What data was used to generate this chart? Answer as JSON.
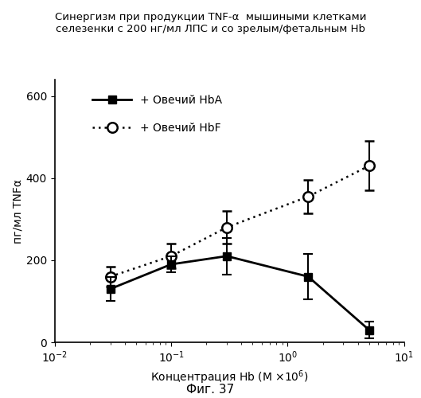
{
  "title_line1": "Синергизм при продукции TNF-α  мышиными клетками",
  "title_line2": "селезенки с 200 нг/мл ЛПС и со зрелым/фетальным Hb",
  "xlabel": "Концентрация Hb (М ×$10^{6}$)",
  "ylabel": "пг/мл TNFα",
  "fig_label": "Фиг. 37",
  "hbA_x": [
    0.03,
    0.1,
    0.3,
    1.5,
    5.0
  ],
  "hbA_y": [
    130,
    190,
    210,
    160,
    30
  ],
  "hbA_yerr": [
    30,
    20,
    45,
    55,
    20
  ],
  "hbF_x": [
    0.03,
    0.1,
    0.3,
    1.5,
    5.0
  ],
  "hbF_y": [
    160,
    210,
    280,
    355,
    430
  ],
  "hbF_yerr": [
    25,
    30,
    40,
    40,
    60
  ],
  "hbA_label": "+ Овечий HbA",
  "hbF_label": "+ Овечий HbF",
  "xlim": [
    0.01,
    10
  ],
  "ylim": [
    0,
    640
  ],
  "yticks": [
    0,
    200,
    400,
    600
  ],
  "xticks": [
    0.01,
    0.1,
    1.0,
    10.0
  ],
  "xtick_labels": [
    "$10^{-2}$",
    "$10^{-1}$",
    "$10^{0}$",
    "$10^{1}$"
  ],
  "line_color": "#000000",
  "bg_color": "#ffffff"
}
